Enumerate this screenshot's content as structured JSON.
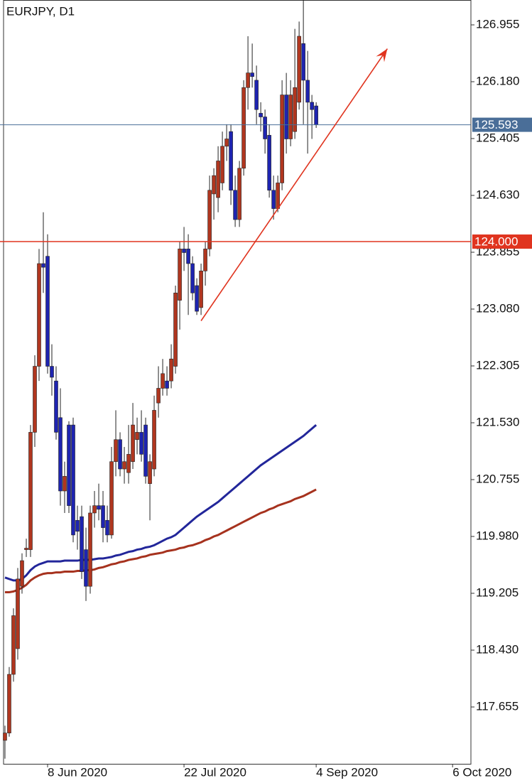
{
  "chart_data": {
    "type": "candlestick",
    "title": "EURJPY, D1",
    "open": [
      117.2,
      117.3,
      118.1,
      118.45,
      119.3,
      119.8,
      119.8,
      121.4,
      122.3,
      123.7,
      123.8,
      122.3,
      122.1,
      121.6,
      120.6,
      121.5,
      121.5,
      120.2,
      120.25,
      119.8,
      119.3,
      120.3,
      120.4,
      120.4,
      120.2,
      120.0,
      121.0,
      121.3,
      120.9,
      120.85,
      121.0,
      121.3,
      121.4,
      121.5,
      120.7,
      120.9,
      121.8,
      122.0,
      122.1,
      122.1,
      122.3,
      123.2,
      123.9,
      123.9,
      123.7,
      123.4,
      123.1,
      123.6,
      123.9,
      124.65,
      124.6,
      124.8,
      125.3,
      125.5,
      124.7,
      124.3,
      125.0,
      126.1,
      126.3,
      126.2,
      125.75,
      125.7,
      125.45,
      124.7,
      124.45,
      124.8,
      126.0,
      125.4,
      125.5,
      125.9,
      126.7,
      126.2,
      125.9,
      125.85
    ],
    "high": [
      117.4,
      118.2,
      119.0,
      119.55,
      119.75,
      119.95,
      121.5,
      122.45,
      123.9,
      124.4,
      124.1,
      122.6,
      122.3,
      122.0,
      121.0,
      121.55,
      121.6,
      120.4,
      120.4,
      120.1,
      120.4,
      120.6,
      120.7,
      120.6,
      120.4,
      121.2,
      121.7,
      121.4,
      121.2,
      121.5,
      121.8,
      121.6,
      121.7,
      121.6,
      121.1,
      121.9,
      122.3,
      122.4,
      122.3,
      122.6,
      123.4,
      124.0,
      124.2,
      124.1,
      123.8,
      123.5,
      123.7,
      124.0,
      124.9,
      125.0,
      125.3,
      125.5,
      125.6,
      125.6,
      124.9,
      125.1,
      126.2,
      126.8,
      126.7,
      126.4,
      125.9,
      125.8,
      125.6,
      124.9,
      124.9,
      126.2,
      126.3,
      126.2,
      126.9,
      127.0,
      127.3,
      126.6,
      126.0,
      125.9
    ],
    "low": [
      116.95,
      117.25,
      118.0,
      118.3,
      119.2,
      119.7,
      119.7,
      121.2,
      122.1,
      123.3,
      122.2,
      121.9,
      121.3,
      120.4,
      120.3,
      120.3,
      119.9,
      119.8,
      119.4,
      119.1,
      119.2,
      120.1,
      120.2,
      119.9,
      119.9,
      119.95,
      120.8,
      120.8,
      120.7,
      120.7,
      120.9,
      121.1,
      121.0,
      120.7,
      120.2,
      120.8,
      121.6,
      121.9,
      121.9,
      122.0,
      122.2,
      122.8,
      123.6,
      123.0,
      123.2,
      123.0,
      123.0,
      123.4,
      123.8,
      124.3,
      124.4,
      124.7,
      125.1,
      124.5,
      124.2,
      124.2,
      124.9,
      125.8,
      126.1,
      125.6,
      125.5,
      125.2,
      124.6,
      124.3,
      124.4,
      124.7,
      125.2,
      125.3,
      125.4,
      125.8,
      125.6,
      125.2,
      125.4,
      125.55
    ],
    "close": [
      117.3,
      118.1,
      118.9,
      119.4,
      119.65,
      119.82,
      121.4,
      122.3,
      123.7,
      123.65,
      122.3,
      122.15,
      121.4,
      120.6,
      120.8,
      120.4,
      120.0,
      120.05,
      119.5,
      119.3,
      120.3,
      120.4,
      120.35,
      120.1,
      120.0,
      121.0,
      121.3,
      120.9,
      121.0,
      121.1,
      121.5,
      121.4,
      121.1,
      120.8,
      121.0,
      121.7,
      122.0,
      122.2,
      122.0,
      122.4,
      123.3,
      123.9,
      123.85,
      123.7,
      123.3,
      123.05,
      123.6,
      123.9,
      124.7,
      124.9,
      125.1,
      125.3,
      125.4,
      124.7,
      124.3,
      125.0,
      126.1,
      126.3,
      126.25,
      125.8,
      125.7,
      125.4,
      124.7,
      124.45,
      124.8,
      126.0,
      125.4,
      126.0,
      126.1,
      126.8,
      126.2,
      125.9,
      125.8,
      125.593
    ],
    "up_color": "#b0361f",
    "down_color": "#1e24b0",
    "series": [
      {
        "color": "#22269a",
        "values": [
          119.42,
          119.4,
          119.38,
          119.38,
          119.4,
          119.45,
          119.52,
          119.57,
          119.6,
          119.62,
          119.64,
          119.64,
          119.64,
          119.64,
          119.65,
          119.65,
          119.65,
          119.65,
          119.66,
          119.66,
          119.66,
          119.67,
          119.68,
          119.68,
          119.69,
          119.7,
          119.72,
          119.73,
          119.75,
          119.77,
          119.78,
          119.8,
          119.81,
          119.83,
          119.84,
          119.86,
          119.89,
          119.92,
          119.95,
          119.97,
          120.0,
          120.05,
          120.1,
          120.15,
          120.2,
          120.25,
          120.29,
          120.33,
          120.37,
          120.41,
          120.45,
          120.5,
          120.55,
          120.6,
          120.65,
          120.7,
          120.75,
          120.8,
          120.85,
          120.9,
          120.95,
          120.99,
          121.03,
          121.07,
          121.11,
          121.15,
          121.19,
          121.23,
          121.27,
          121.31,
          121.35,
          121.4,
          121.45,
          121.5
        ]
      },
      {
        "color": "#a6321e",
        "values": [
          119.22,
          119.22,
          119.23,
          119.25,
          119.28,
          119.32,
          119.38,
          119.42,
          119.45,
          119.47,
          119.48,
          119.48,
          119.49,
          119.49,
          119.5,
          119.5,
          119.5,
          119.51,
          119.51,
          119.52,
          119.52,
          119.53,
          119.55,
          119.56,
          119.58,
          119.6,
          119.61,
          119.63,
          119.64,
          119.66,
          119.67,
          119.68,
          119.7,
          119.71,
          119.73,
          119.74,
          119.75,
          119.76,
          119.78,
          119.79,
          119.8,
          119.82,
          119.83,
          119.85,
          119.86,
          119.88,
          119.9,
          119.93,
          119.95,
          119.98,
          120.0,
          120.03,
          120.06,
          120.09,
          120.12,
          120.15,
          120.18,
          120.21,
          120.24,
          120.27,
          120.3,
          120.32,
          120.35,
          120.37,
          120.4,
          120.42,
          120.44,
          120.46,
          120.49,
          120.51,
          120.53,
          120.56,
          120.59,
          120.62
        ]
      }
    ],
    "xlim": [
      -0.33,
      109.3
    ],
    "xticks": [
      {
        "value": 10,
        "label": "8 Jun 2020"
      },
      {
        "value": 42,
        "label": "22 Jul 2020"
      },
      {
        "value": 73,
        "label": "4 Sep 2020"
      },
      {
        "value": 105,
        "label": "6 Oct 2020"
      }
    ],
    "ylim": [
      116.88,
      127.294
    ],
    "yticks": [
      126.955,
      {
        "value": 126.18,
        "label": "126.180"
      },
      125.405,
      {
        "value": 124.63,
        "label": "124.630"
      },
      123.855,
      {
        "value": 123.08,
        "label": "123.080"
      },
      122.305,
      {
        "value": 121.53,
        "label": "121.530"
      },
      120.755,
      {
        "value": 119.98,
        "label": "119.980"
      },
      119.205,
      {
        "value": 118.43,
        "label": "118.430"
      },
      117.655
    ],
    "price_lines": [
      {
        "value": 124,
        "label": "124.000",
        "color": "#e0341f"
      },
      {
        "value": 125.593,
        "color": "#4a6e98"
      }
    ],
    "trend_arrow": {
      "x": [
        46,
        89.7
      ],
      "y": [
        122.92,
        126.63
      ],
      "color": "#e0341f"
    }
  }
}
